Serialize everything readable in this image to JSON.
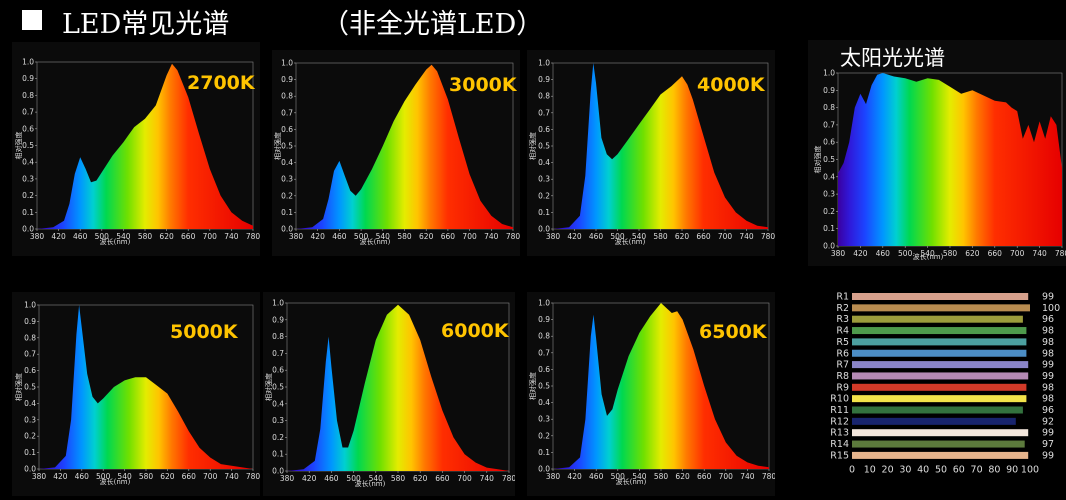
{
  "header": {
    "title": "LED常见光谱",
    "subtitle": "（非全光谱LED）"
  },
  "axis": {
    "xlabel": "波长(nm)",
    "ylabel": "相对强度",
    "xticks": [
      "380",
      "420",
      "460",
      "500",
      "540",
      "580",
      "620",
      "660",
      "700",
      "740",
      "780"
    ],
    "yticks": [
      "0.0",
      "0.1",
      "0.2",
      "0.3",
      "0.4",
      "0.5",
      "0.6",
      "0.7",
      "0.8",
      "0.9",
      "1.0"
    ]
  },
  "chart_data": [
    {
      "type": "area",
      "title": "2700K",
      "xlim": [
        380,
        780
      ],
      "ylim": [
        0,
        1
      ],
      "x": [
        380,
        410,
        430,
        440,
        450,
        460,
        470,
        480,
        490,
        500,
        520,
        540,
        560,
        580,
        600,
        620,
        630,
        640,
        660,
        680,
        700,
        720,
        740,
        760,
        780
      ],
      "y": [
        0,
        0.01,
        0.05,
        0.15,
        0.33,
        0.43,
        0.36,
        0.28,
        0.29,
        0.34,
        0.44,
        0.52,
        0.61,
        0.66,
        0.74,
        0.92,
        0.99,
        0.95,
        0.79,
        0.57,
        0.36,
        0.2,
        0.1,
        0.05,
        0.02
      ]
    },
    {
      "type": "area",
      "title": "3000K",
      "xlim": [
        380,
        780
      ],
      "ylim": [
        0,
        1
      ],
      "x": [
        380,
        410,
        430,
        440,
        450,
        460,
        470,
        480,
        490,
        500,
        520,
        540,
        560,
        580,
        600,
        620,
        630,
        640,
        660,
        680,
        700,
        720,
        740,
        760,
        780
      ],
      "y": [
        0,
        0.01,
        0.06,
        0.18,
        0.35,
        0.41,
        0.32,
        0.23,
        0.2,
        0.24,
        0.36,
        0.5,
        0.65,
        0.77,
        0.87,
        0.96,
        0.99,
        0.95,
        0.78,
        0.55,
        0.33,
        0.17,
        0.08,
        0.03,
        0.01
      ]
    },
    {
      "type": "area",
      "title": "4000K",
      "xlim": [
        380,
        780
      ],
      "ylim": [
        0,
        1
      ],
      "x": [
        380,
        410,
        430,
        440,
        450,
        455,
        460,
        470,
        480,
        490,
        500,
        520,
        540,
        560,
        580,
        600,
        620,
        630,
        640,
        660,
        680,
        700,
        720,
        740,
        760,
        780
      ],
      "y": [
        0,
        0.01,
        0.08,
        0.32,
        0.82,
        1.0,
        0.88,
        0.55,
        0.45,
        0.42,
        0.45,
        0.54,
        0.63,
        0.72,
        0.81,
        0.86,
        0.92,
        0.87,
        0.78,
        0.56,
        0.34,
        0.19,
        0.1,
        0.05,
        0.02,
        0.01
      ]
    },
    {
      "type": "area",
      "title": "5000K",
      "xlim": [
        380,
        780
      ],
      "ylim": [
        0,
        1
      ],
      "x": [
        380,
        410,
        430,
        440,
        450,
        455,
        460,
        470,
        480,
        490,
        500,
        520,
        540,
        560,
        580,
        600,
        620,
        640,
        660,
        680,
        700,
        720,
        740,
        760,
        780
      ],
      "y": [
        0,
        0.01,
        0.08,
        0.3,
        0.82,
        1.0,
        0.86,
        0.58,
        0.44,
        0.4,
        0.43,
        0.5,
        0.54,
        0.56,
        0.56,
        0.51,
        0.46,
        0.35,
        0.23,
        0.13,
        0.07,
        0.03,
        0.02,
        0.01,
        0
      ]
    },
    {
      "type": "area",
      "title": "6000K",
      "xlim": [
        380,
        780
      ],
      "ylim": [
        0,
        1
      ],
      "x": [
        380,
        410,
        430,
        440,
        450,
        455,
        460,
        470,
        480,
        490,
        500,
        520,
        540,
        560,
        580,
        600,
        620,
        640,
        660,
        680,
        700,
        720,
        740,
        760,
        780
      ],
      "y": [
        0,
        0.01,
        0.06,
        0.25,
        0.65,
        0.8,
        0.62,
        0.3,
        0.14,
        0.14,
        0.24,
        0.52,
        0.78,
        0.93,
        0.99,
        0.93,
        0.78,
        0.56,
        0.36,
        0.2,
        0.1,
        0.05,
        0.02,
        0.01,
        0
      ]
    },
    {
      "type": "area",
      "title": "6500K",
      "xlim": [
        380,
        780
      ],
      "ylim": [
        0,
        1
      ],
      "x": [
        380,
        410,
        430,
        440,
        450,
        455,
        460,
        470,
        480,
        490,
        500,
        520,
        540,
        560,
        580,
        600,
        610,
        620,
        640,
        660,
        680,
        700,
        720,
        740,
        760,
        780
      ],
      "y": [
        0,
        0.01,
        0.07,
        0.3,
        0.8,
        0.93,
        0.78,
        0.45,
        0.32,
        0.36,
        0.48,
        0.68,
        0.82,
        0.92,
        1.0,
        0.94,
        0.95,
        0.9,
        0.72,
        0.5,
        0.3,
        0.16,
        0.08,
        0.04,
        0.02,
        0.01
      ]
    },
    {
      "type": "area",
      "title": "太阳光光谱",
      "xlim": [
        380,
        780
      ],
      "ylim": [
        0,
        1
      ],
      "x": [
        380,
        390,
        400,
        410,
        420,
        430,
        440,
        450,
        460,
        480,
        500,
        520,
        540,
        560,
        580,
        600,
        620,
        640,
        660,
        680,
        690,
        700,
        710,
        720,
        730,
        740,
        750,
        760,
        770,
        780
      ],
      "y": [
        0.42,
        0.48,
        0.6,
        0.8,
        0.88,
        0.82,
        0.93,
        0.99,
        1.0,
        0.98,
        0.97,
        0.95,
        0.97,
        0.96,
        0.92,
        0.88,
        0.9,
        0.87,
        0.84,
        0.83,
        0.8,
        0.78,
        0.62,
        0.7,
        0.6,
        0.72,
        0.62,
        0.75,
        0.7,
        0.45
      ]
    },
    {
      "type": "bar",
      "title": "",
      "categories": [
        "R1",
        "R2",
        "R3",
        "R4",
        "R5",
        "R6",
        "R7",
        "R8",
        "R9",
        "R10",
        "R11",
        "R12",
        "R13",
        "R14",
        "R15"
      ],
      "values": [
        99,
        100,
        96,
        98,
        98,
        98,
        99,
        99,
        98,
        98,
        96,
        92,
        99,
        97,
        99
      ],
      "value_labels": [
        "99",
        "100",
        "96",
        "98",
        "98",
        "98",
        "99",
        "99",
        "98",
        "98",
        "96",
        "92",
        "99",
        "97",
        "99"
      ],
      "colors": [
        "#d6a08c",
        "#b98c50",
        "#9c9c3c",
        "#4e9a4c",
        "#4ca0a0",
        "#4c8ec6",
        "#8a84c8",
        "#b58ab5",
        "#d23a28",
        "#f2e34a",
        "#33723e",
        "#18246e",
        "#f3e6dc",
        "#5c7a3c",
        "#e6b48c"
      ],
      "xticks": [
        "0",
        "10",
        "20",
        "30",
        "40",
        "50",
        "60",
        "70",
        "80",
        "90",
        "100"
      ],
      "xlim": [
        0,
        100
      ]
    }
  ]
}
